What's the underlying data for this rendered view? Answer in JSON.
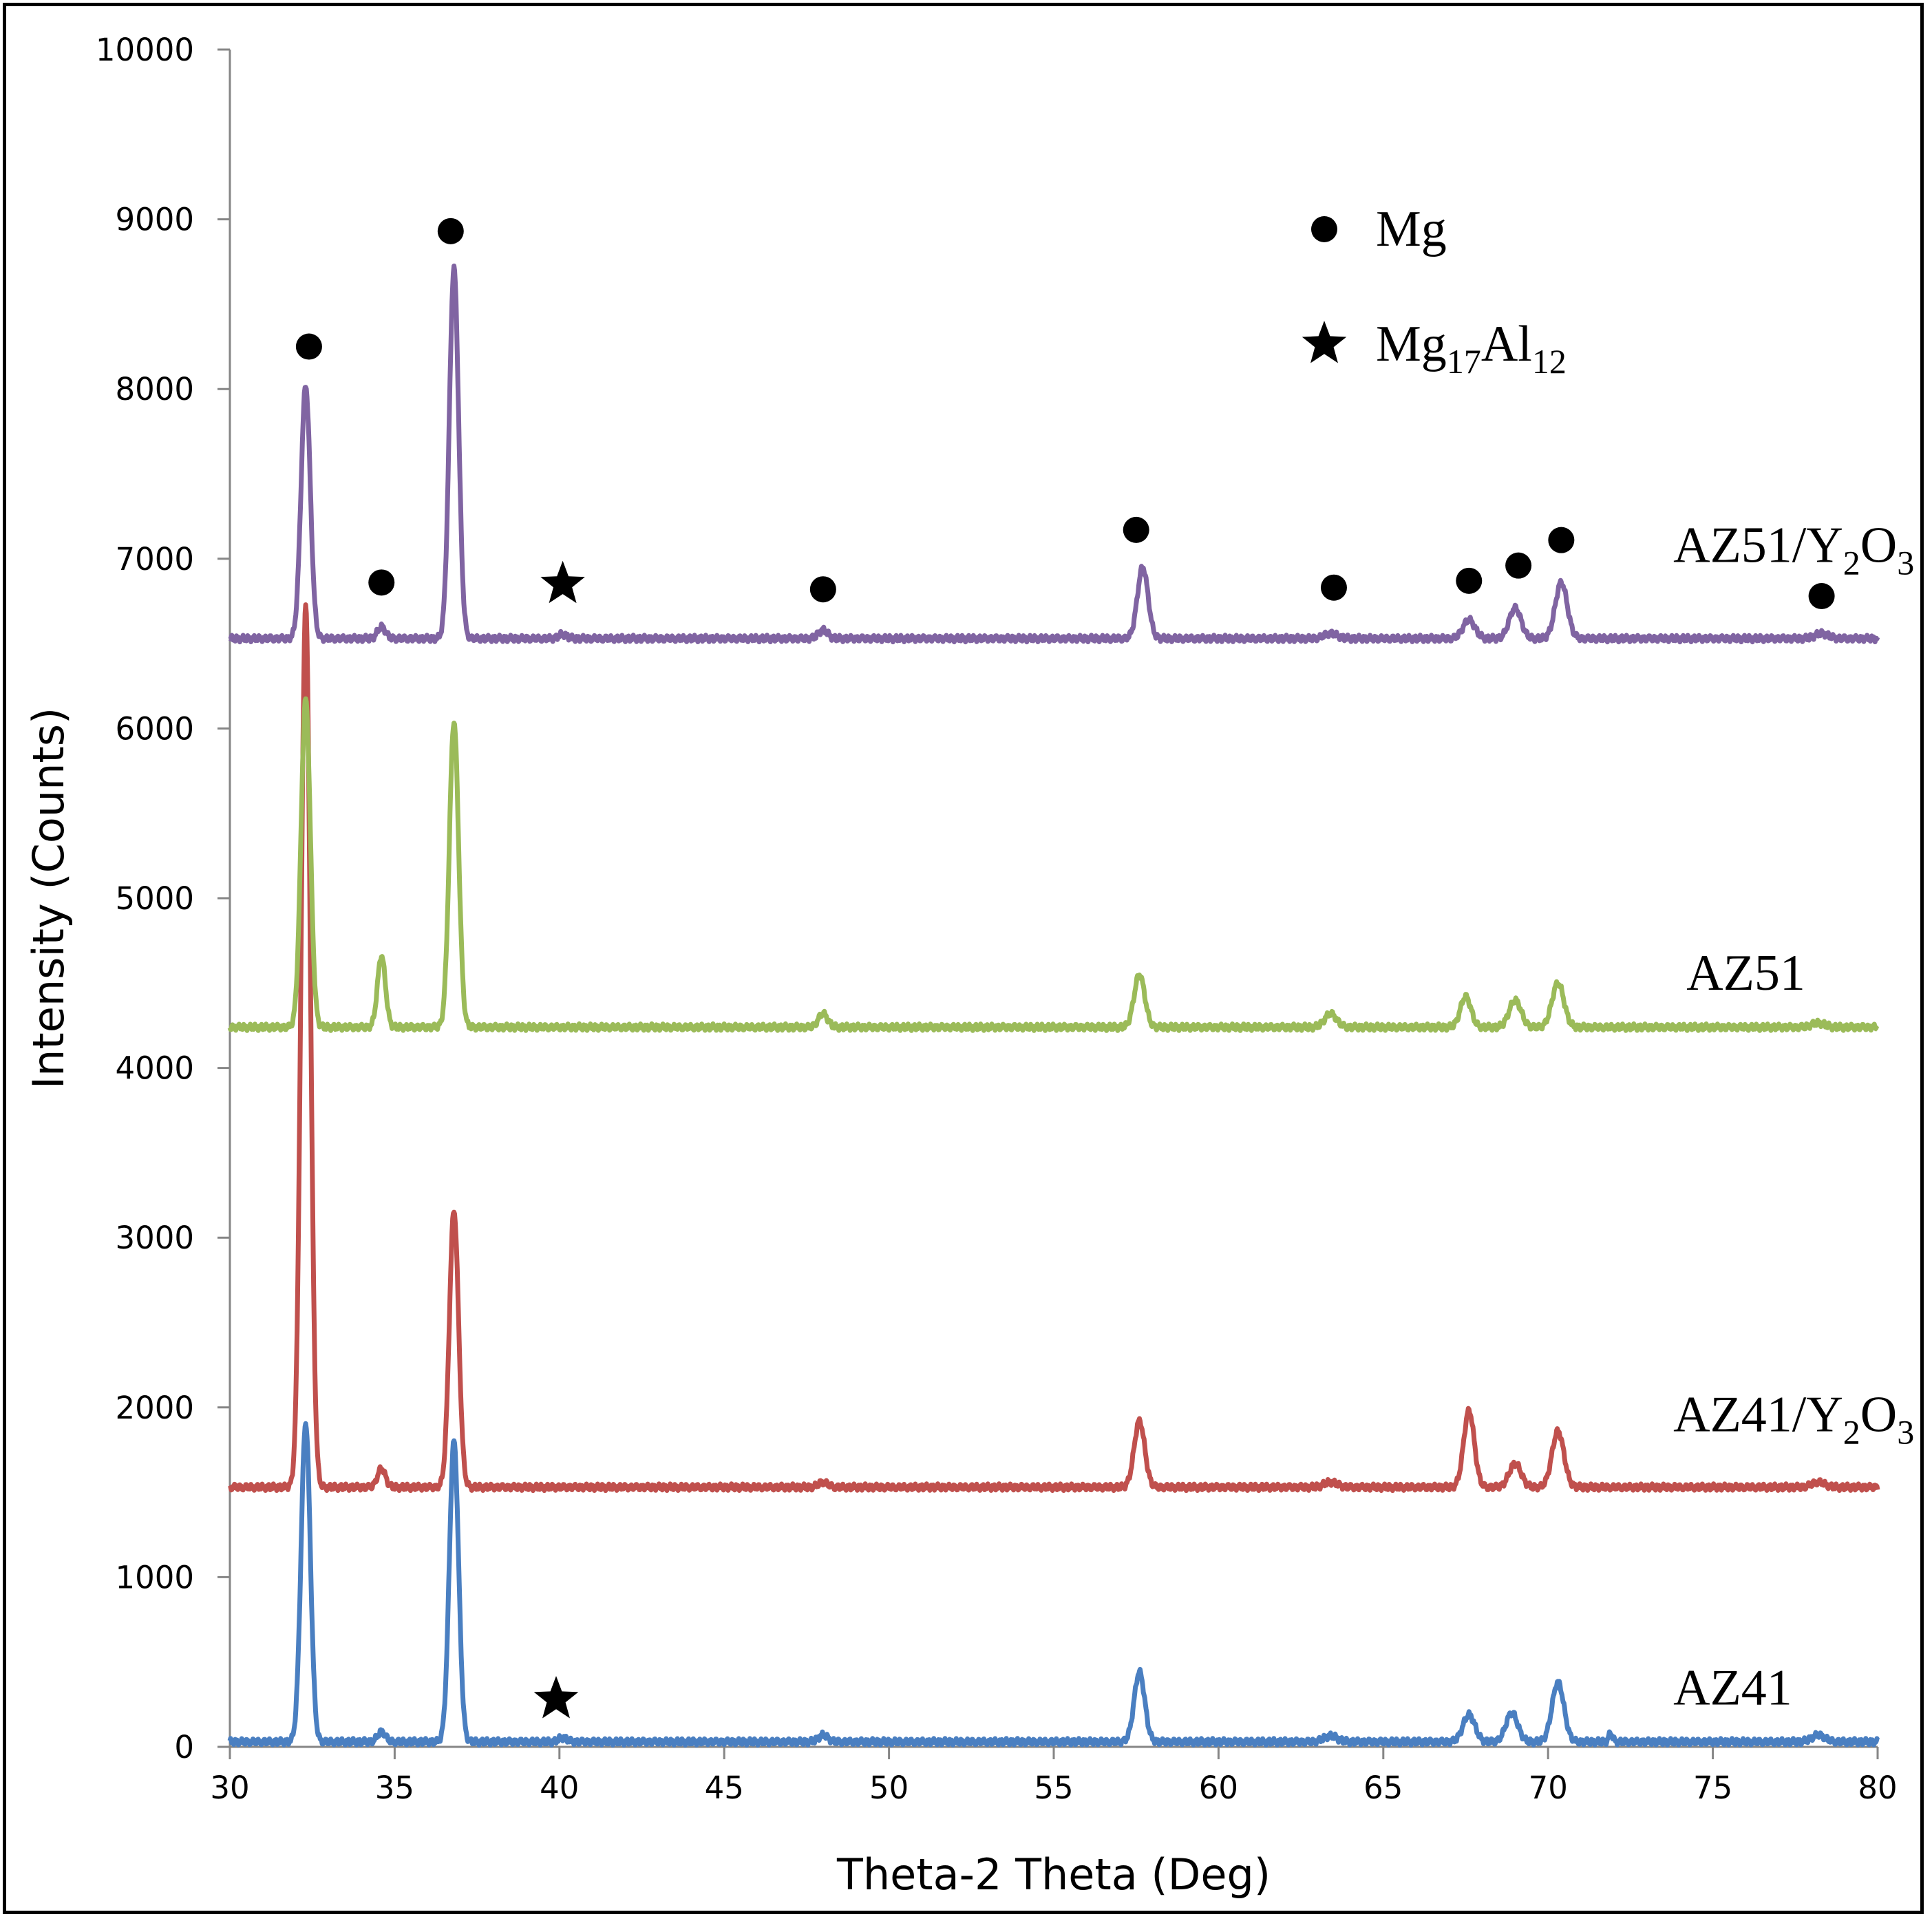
{
  "chart_data": {
    "type": "line",
    "title": "",
    "xlabel": "Theta-2 Theta (Deg)",
    "ylabel": "Intensity (Counts)",
    "xlim": [
      30,
      80
    ],
    "ylim": [
      0,
      10000
    ],
    "grid": false,
    "x_ticks": [
      "30",
      "35",
      "40",
      "45",
      "50",
      "55",
      "60",
      "65",
      "70",
      "75",
      "80"
    ],
    "y_ticks": [
      "0",
      "1000",
      "2000",
      "3000",
      "4000",
      "5000",
      "6000",
      "7000",
      "8000",
      "9000",
      "10000"
    ],
    "series": [
      {
        "name": "AZ41",
        "color": "#4a7fc1",
        "baseline": 30,
        "label": {
          "text": "AZ41",
          "sub": "",
          "tail": "",
          "at": [
            73.8,
            250
          ]
        },
        "peaks": [
          [
            32.3,
            1880,
            0.14
          ],
          [
            34.6,
            60,
            0.12
          ],
          [
            36.8,
            1770,
            0.14
          ],
          [
            40.1,
            25,
            0.12
          ],
          [
            48.0,
            40,
            0.14
          ],
          [
            57.6,
            410,
            0.16
          ],
          [
            63.4,
            35,
            0.2
          ],
          [
            67.6,
            160,
            0.18
          ],
          [
            68.9,
            170,
            0.18
          ],
          [
            70.3,
            350,
            0.18
          ],
          [
            71.9,
            50,
            0.06
          ],
          [
            78.2,
            40,
            0.2
          ]
        ]
      },
      {
        "name": "AZ41/Y2O3",
        "color": "#c0504d",
        "baseline": 1530,
        "label": {
          "text": "AZ41/Y",
          "sub": "2",
          "tail": "O",
          "sub2": "3",
          "at": [
            73.8,
            1860
          ]
        },
        "peaks": [
          [
            32.3,
            5200,
            0.14
          ],
          [
            34.6,
            110,
            0.12
          ],
          [
            36.8,
            1630,
            0.14
          ],
          [
            48.0,
            30,
            0.14
          ],
          [
            57.6,
            390,
            0.16
          ],
          [
            63.4,
            30,
            0.2
          ],
          [
            67.6,
            450,
            0.16
          ],
          [
            69.0,
            140,
            0.18
          ],
          [
            70.3,
            330,
            0.18
          ],
          [
            78.2,
            30,
            0.2
          ]
        ]
      },
      {
        "name": "AZ51",
        "color": "#9bbb59",
        "baseline": 4240,
        "label": {
          "text": "AZ51",
          "sub": "",
          "tail": "",
          "at": [
            74.2,
            4460
          ]
        },
        "peaks": [
          [
            32.3,
            1930,
            0.14
          ],
          [
            34.6,
            420,
            0.12
          ],
          [
            36.8,
            1800,
            0.14
          ],
          [
            48.0,
            80,
            0.14
          ],
          [
            57.6,
            310,
            0.16
          ],
          [
            63.4,
            80,
            0.18
          ],
          [
            67.5,
            180,
            0.16
          ],
          [
            69.0,
            160,
            0.18
          ],
          [
            70.3,
            260,
            0.18
          ],
          [
            78.2,
            25,
            0.2
          ]
        ]
      },
      {
        "name": "AZ51/Y2O3",
        "color": "#8064a2",
        "baseline": 6530,
        "label": {
          "text": "AZ51/Y",
          "sub": "2",
          "tail": "O",
          "sub2": "3",
          "at": [
            73.8,
            6980
          ]
        },
        "peaks": [
          [
            32.3,
            1490,
            0.14
          ],
          [
            34.6,
            70,
            0.12
          ],
          [
            36.8,
            2180,
            0.14
          ],
          [
            40.1,
            25,
            0.12
          ],
          [
            48.0,
            50,
            0.14
          ],
          [
            57.7,
            420,
            0.16
          ],
          [
            63.4,
            30,
            0.2
          ],
          [
            67.6,
            110,
            0.18
          ],
          [
            69.0,
            180,
            0.18
          ],
          [
            70.4,
            330,
            0.18
          ],
          [
            78.3,
            30,
            0.2
          ]
        ]
      }
    ],
    "markers": [
      {
        "symbol": "circle",
        "phase": "Mg",
        "points": [
          [
            32.4,
            8250
          ],
          [
            34.6,
            6860
          ],
          [
            36.7,
            8930
          ],
          [
            48.0,
            6820
          ],
          [
            57.5,
            7170
          ],
          [
            63.5,
            6830
          ],
          [
            67.6,
            6870
          ],
          [
            69.1,
            6960
          ],
          [
            70.4,
            7110
          ],
          [
            78.3,
            6780
          ]
        ]
      },
      {
        "symbol": "star",
        "phase": "Mg17Al12",
        "points": [
          [
            40.1,
            6850
          ],
          [
            39.9,
            280
          ]
        ]
      }
    ],
    "legend": {
      "placement": "top-right",
      "entries": [
        {
          "symbol": "circle",
          "text": "Mg",
          "sub": "",
          "tail": "",
          "sub2": ""
        },
        {
          "symbol": "star",
          "text": "Mg",
          "sub": "17",
          "tail": "Al",
          "sub2": "12"
        }
      ]
    }
  }
}
